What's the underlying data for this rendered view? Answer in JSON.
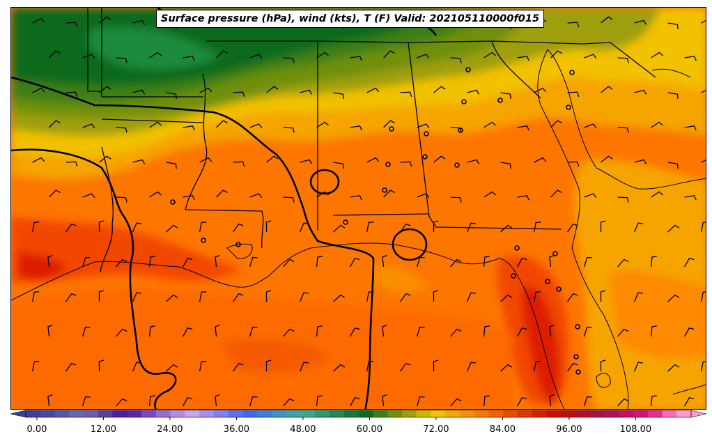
{
  "title": "Surface pressure (hPa), wind (kts), T (F) Valid: 202105110000f015",
  "colorbar": {
    "tick_labels": [
      "0.00",
      "12.00",
      "24.00",
      "36.00",
      "48.00",
      "60.00",
      "72.00",
      "84.00",
      "96.00",
      "108.00"
    ],
    "tick_values": [
      0,
      12,
      24,
      36,
      48,
      60,
      72,
      84,
      96,
      108
    ],
    "vmin": -2,
    "vmax": 118,
    "step": 3,
    "colors": [
      "#3b3f9f",
      "#4648a6",
      "#5357ad",
      "#6566b3",
      "#6c5bb3",
      "#5b3ea8",
      "#4a1fa0",
      "#5d22b0",
      "#7d45c9",
      "#9a6ad8",
      "#b58ae6",
      "#c9a4f0",
      "#a48ff0",
      "#7f7ff6",
      "#5c6ff5",
      "#3f66f2",
      "#3b7fe3",
      "#3b93c9",
      "#3ea3ac",
      "#3aa791",
      "#2a9a6f",
      "#1e8a52",
      "#137a3d",
      "#0c6b1f",
      "#3d7f15",
      "#6f8f0f",
      "#9f9f0a",
      "#d3b300",
      "#f2c100",
      "#f6a400",
      "#f98e00",
      "#fd7600",
      "#fb5f00",
      "#f24700",
      "#e63200",
      "#dd1d00",
      "#d00d00",
      "#c40b0e",
      "#b50d26",
      "#a8123b",
      "#b1114d",
      "#c70f63",
      "#db0f7a",
      "#ee2b93",
      "#f76cb3",
      "#fb9cd0"
    ]
  },
  "colors": {
    "dark_green": "#0c6b1f",
    "mid_green": "#3d7f15",
    "olive": "#6f8f0f",
    "khaki": "#9f9f0a",
    "gold": "#f2c100",
    "light_orange": "#f6a400",
    "orange": "#fd7600",
    "deep_orange": "#fb5f00",
    "red_orange": "#f24700",
    "red": "#dd1d00",
    "ocean_orange": "#fd6a00"
  },
  "icons": [
    "wind-barb-icon",
    "station-circle-icon"
  ]
}
